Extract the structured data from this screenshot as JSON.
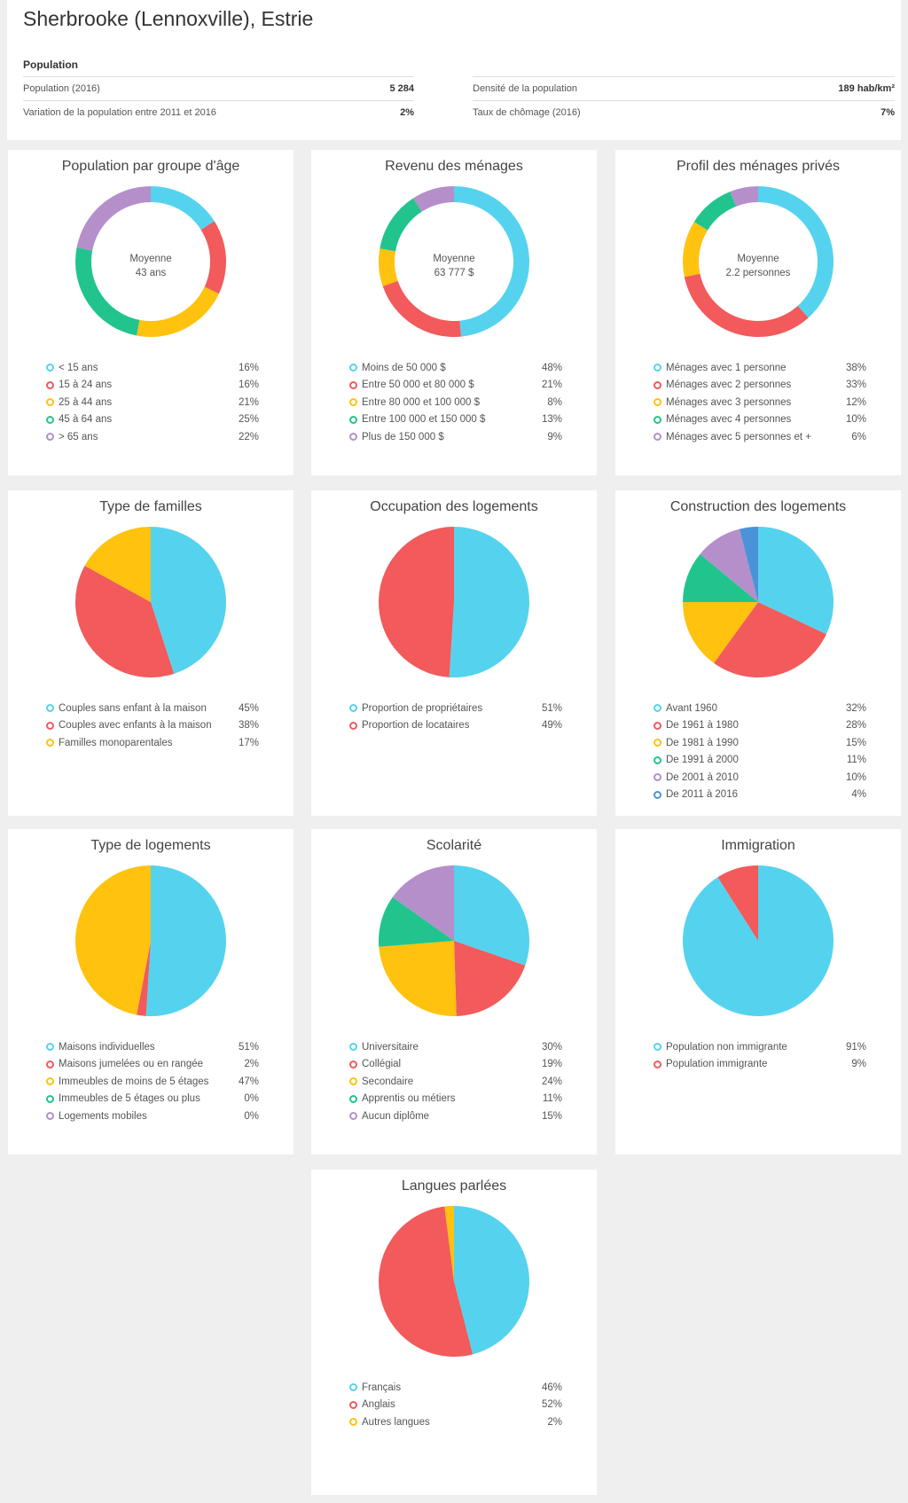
{
  "header": {
    "title": "Sherbrooke (Lennoxville), Estrie",
    "section": "Population",
    "stats": [
      {
        "label": "Population (2016)",
        "value": "5 284"
      },
      {
        "label": "Densité de la population",
        "value": "189 hab/km²"
      },
      {
        "label": "Variation de la population entre 2011 et 2016",
        "value": "2%"
      },
      {
        "label": "Taux de chômage (2016)",
        "value": "7%"
      }
    ]
  },
  "colors": {
    "cyan": "#55d3ee",
    "red": "#f25a5b",
    "yellow": "#ffc20e",
    "green": "#22c48e",
    "purple": "#b58fca",
    "blue": "#4a93d8"
  },
  "chart_data": [
    {
      "type": "donut",
      "title": "Population par groupe d'âge",
      "center": [
        "Moyenne",
        "43 ans"
      ],
      "categories": [
        "< 15 ans",
        "15 à 24 ans",
        "25 à 44 ans",
        "45 à 64 ans",
        "> 65 ans"
      ],
      "values": [
        16,
        16,
        21,
        25,
        22
      ]
    },
    {
      "type": "donut",
      "title": "Revenu des ménages",
      "center": [
        "Moyenne",
        "63 777 $"
      ],
      "categories": [
        "Moins de 50 000 $",
        "Entre 50 000 et 80 000 $",
        "Entre 80 000 et 100 000 $",
        "Entre 100 000 et 150 000 $",
        "Plus de 150 000 $"
      ],
      "values": [
        48,
        21,
        8,
        13,
        9
      ]
    },
    {
      "type": "donut",
      "title": "Profil des ménages privés",
      "center": [
        "Moyenne",
        "2.2 personnes"
      ],
      "categories": [
        "Ménages avec 1 personne",
        "Ménages avec 2 personnes",
        "Ménages avec 3 personnes",
        "Ménages avec 4 personnes",
        "Ménages avec 5 personnes et +"
      ],
      "values": [
        38,
        33,
        12,
        10,
        6
      ]
    },
    {
      "type": "pie",
      "title": "Type de familles",
      "categories": [
        "Couples sans enfant à la maison",
        "Couples avec enfants à la maison",
        "Familles monoparentales"
      ],
      "values": [
        45,
        38,
        17
      ]
    },
    {
      "type": "pie",
      "title": "Occupation des logements",
      "categories": [
        "Proportion de propriétaires",
        "Proportion de locataires"
      ],
      "values": [
        51,
        49
      ]
    },
    {
      "type": "pie",
      "title": "Construction des logements",
      "categories": [
        "Avant 1960",
        "De 1961 à 1980",
        "De 1981 à 1990",
        "De 1991 à 2000",
        "De 2001 à 2010",
        "De 2011 à 2016"
      ],
      "values": [
        32,
        28,
        15,
        11,
        10,
        4
      ]
    },
    {
      "type": "pie",
      "title": "Type de logements",
      "categories": [
        "Maisons individuelles",
        "Maisons jumelées ou en rangée",
        "Immeubles de moins de 5 étages",
        "Immeubles de 5 étages ou plus",
        "Logements mobiles"
      ],
      "values": [
        51,
        2,
        47,
        0,
        0
      ]
    },
    {
      "type": "pie",
      "title": "Scolarité",
      "categories": [
        "Universitaire",
        "Collégial",
        "Secondaire",
        "Apprentis ou métiers",
        "Aucun diplôme"
      ],
      "values": [
        30,
        19,
        24,
        11,
        15
      ]
    },
    {
      "type": "pie",
      "title": "Immigration",
      "categories": [
        "Population non immigrante",
        "Population immigrante"
      ],
      "values": [
        91,
        9
      ]
    },
    {
      "type": "pie",
      "title": "Langues parlées",
      "categories": [
        "Français",
        "Anglais",
        "Autres langues"
      ],
      "values": [
        46,
        52,
        2
      ]
    }
  ]
}
